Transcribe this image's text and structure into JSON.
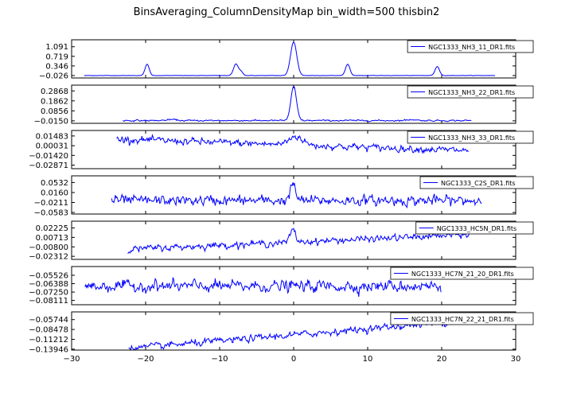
{
  "figure": {
    "title": "BinsAveraging_ColumnDensityMap bin_width=500 thisbin2"
  },
  "chart_data": {
    "type": "line",
    "shared_x_axis": {
      "xlim": [
        -30,
        30
      ],
      "ticks": [
        -30,
        -20,
        -10,
        0,
        10,
        20,
        30
      ],
      "tick_labels": [
        "−30",
        "−20",
        "−10",
        "0",
        "10",
        "20",
        "30"
      ]
    },
    "color": "#0000ff",
    "legend_location": "upper-right",
    "panels": [
      {
        "name": "NGC1333_NH3_11_DR1.fits",
        "xrange": [
          -28.3,
          27.2
        ],
        "ylim": [
          -0.12,
          1.36
        ],
        "yticks": [
          -0.026,
          0.346,
          0.719,
          1.091
        ],
        "ytick_labels": [
          "−0.026",
          "0.346",
          "0.719",
          "1.091"
        ],
        "baseline": -0.026,
        "noise": 0.004,
        "slope": 0,
        "peaks": [
          {
            "x": -19.8,
            "amp": 0.44,
            "w": 0.28
          },
          {
            "x": -7.8,
            "amp": 0.45,
            "w": 0.32
          },
          {
            "x": -7.1,
            "amp": 0.15,
            "w": 0.25
          },
          {
            "x": 0.0,
            "amp": 1.3,
            "w": 0.42
          },
          {
            "x": 7.3,
            "amp": 0.44,
            "w": 0.3
          },
          {
            "x": 19.4,
            "amp": 0.35,
            "w": 0.3
          }
        ]
      },
      {
        "name": "NGC1333_NH3_22_DR1.fits",
        "xrange": [
          -23.1,
          24.0
        ],
        "ylim": [
          -0.04,
          0.345
        ],
        "yticks": [
          -0.015,
          0.0856,
          0.1862,
          0.2868
        ],
        "ytick_labels": [
          "−0.0150",
          "0.0856",
          "0.1862",
          "0.2868"
        ],
        "baseline": -0.012,
        "noise": 0.006,
        "slope": 0,
        "peaks": [
          {
            "x": 0.0,
            "amp": 0.34,
            "w": 0.38
          },
          {
            "x": -16.5,
            "amp": 0.01,
            "w": 0.6
          },
          {
            "x": 16.0,
            "amp": 0.01,
            "w": 0.6
          }
        ]
      },
      {
        "name": "NGC1333_NH3_33_DR1.fits",
        "xrange": [
          -23.9,
          23.6
        ],
        "ylim": [
          -0.034,
          0.023
        ],
        "yticks": [
          -0.02871,
          -0.0142,
          0.00031,
          0.01483
        ],
        "ytick_labels": [
          "−0.02871",
          "−0.01420",
          "0.00031",
          "0.01483"
        ],
        "baseline": 0.0015,
        "noise": 0.0042,
        "slope": -0.00036,
        "peaks": [
          {
            "x": 0.3,
            "amp": 0.013,
            "w": 0.9
          }
        ]
      },
      {
        "name": "NGC1333_C2S_DR1.fits",
        "xrange": [
          -24.6,
          25.4
        ],
        "ylim": [
          -0.064,
          0.078
        ],
        "yticks": [
          -0.0583,
          -0.0211,
          0.016,
          0.0532
        ],
        "ytick_labels": [
          "−0.0583",
          "−0.0211",
          "0.0160",
          "0.0532"
        ],
        "baseline": -0.014,
        "noise": 0.015,
        "slope": 0,
        "peaks": [
          {
            "x": -0.1,
            "amp": 0.06,
            "w": 0.35
          }
        ]
      },
      {
        "name": "NGC1333_HC5N_DR1.fits",
        "xrange": [
          -22.4,
          23.8
        ],
        "ylim": [
          -0.028,
          0.033
        ],
        "yticks": [
          -0.02312,
          -0.008,
          0.00713,
          0.02225
        ],
        "ytick_labels": [
          "−0.02312",
          "−0.00800",
          "0.00713",
          "0.02225"
        ],
        "baseline": -0.0005,
        "noise": 0.0042,
        "slope": 0.0005,
        "peaks": [
          {
            "x": -0.1,
            "amp": 0.02,
            "w": 0.35
          }
        ]
      },
      {
        "name": "NGC1333_HC7N_21_20_DR1.fits",
        "xrange": [
          -28.2,
          19.9
        ],
        "ylim": [
          -0.0855,
          -0.0463
        ],
        "yticks": [
          -0.08111,
          -0.0725,
          -0.06388,
          -0.05526
        ],
        "ytick_labels": [
          "−0.08111",
          "−0.07250",
          "−0.06388",
          "−0.05526"
        ],
        "baseline": -0.0665,
        "noise": 0.0048,
        "slope": 0,
        "peaks": []
      },
      {
        "name": "NGC1333_HC7N_22_21_DR1.fits",
        "xrange": [
          -22.3,
          23.8
        ],
        "ylim": [
          -0.142,
          -0.036
        ],
        "yticks": [
          -0.13946,
          -0.11212,
          -0.08478,
          -0.05744
        ],
        "ytick_labels": [
          "−0.13946",
          "−0.11212",
          "−0.08478",
          "−0.05744"
        ],
        "baseline": -0.1,
        "noise": 0.0075,
        "slope": 0.0017,
        "peaks": []
      }
    ]
  }
}
